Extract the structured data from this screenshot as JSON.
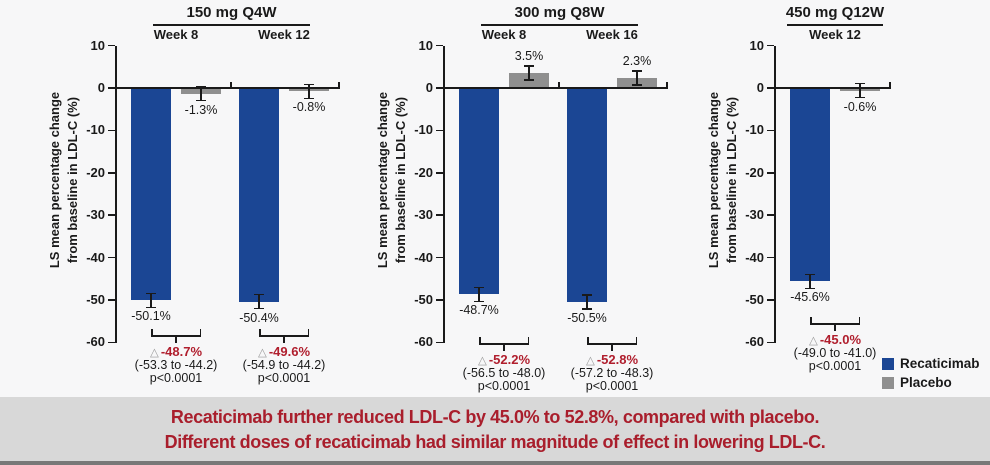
{
  "figure": {
    "banner": {
      "line1": "Recaticimab further reduced LDL-C by 45.0% to 52.8%, compared with placebo.",
      "line2": "Different doses of recaticimab had similar magnitude of effect in lowering LDL-C."
    }
  },
  "colors": {
    "recaticimab_blue": "#1b4694",
    "placebo_gray": "#8f8f8f",
    "difference_red": "#b01e2d",
    "banner_text_red": "#a91e2c",
    "banner_background": "#d8d8d8",
    "chart_background": "#f7f7f8",
    "axis_black": "#1a1a1a",
    "bottom_strip_gray": "#787878"
  },
  "chart_data": {
    "type": "bar",
    "ylabel": [
      "LS mean percentage change",
      "from baseline in LDL-C (%)"
    ],
    "ylim": [
      -60,
      10
    ],
    "yticks": [
      10,
      0,
      -10,
      -20,
      -30,
      -40,
      -50,
      -60
    ],
    "grid": false,
    "legend_position": "bottom-right",
    "difference_marker": "△",
    "legend": [
      {
        "name": "Recaticimab",
        "color": "#1b4694"
      },
      {
        "name": "Placebo",
        "color": "#8f8f8f"
      }
    ],
    "panels": [
      {
        "title": "150 mg Q4W",
        "groups": [
          {
            "week": "Week 8",
            "recaticimab": {
              "value": -50.1,
              "label": "-50.1%"
            },
            "placebo": {
              "value": -1.3,
              "label": "-1.3%"
            },
            "difference": {
              "delta": "-48.7%",
              "ci": "(-53.3 to -44.2)",
              "p": "p<0.0001"
            }
          },
          {
            "week": "Week 12",
            "recaticimab": {
              "value": -50.4,
              "label": "-50.4%"
            },
            "placebo": {
              "value": -0.8,
              "label": "-0.8%"
            },
            "difference": {
              "delta": "-49.6%",
              "ci": "(-54.9 to -44.2)",
              "p": "p<0.0001"
            }
          }
        ]
      },
      {
        "title": "300 mg Q8W",
        "groups": [
          {
            "week": "Week 8",
            "recaticimab": {
              "value": -48.7,
              "label": "-48.7%"
            },
            "placebo": {
              "value": 3.5,
              "label": "3.5%"
            },
            "difference": {
              "delta": "-52.2%",
              "ci": "(-56.5 to -48.0)",
              "p": "p<0.0001"
            }
          },
          {
            "week": "Week 16",
            "recaticimab": {
              "value": -50.5,
              "label": "-50.5%"
            },
            "placebo": {
              "value": 2.3,
              "label": "2.3%"
            },
            "difference": {
              "delta": "-52.8%",
              "ci": "(-57.2 to -48.3)",
              "p": "p<0.0001"
            }
          }
        ]
      },
      {
        "title": "450 mg Q12W",
        "groups": [
          {
            "week": "Week 12",
            "recaticimab": {
              "value": -45.6,
              "label": "-45.6%"
            },
            "placebo": {
              "value": -0.6,
              "label": "-0.6%"
            },
            "difference": {
              "delta": "-45.0%",
              "ci": "(-49.0 to -41.0)",
              "p": "p<0.0001"
            }
          }
        ]
      }
    ]
  }
}
